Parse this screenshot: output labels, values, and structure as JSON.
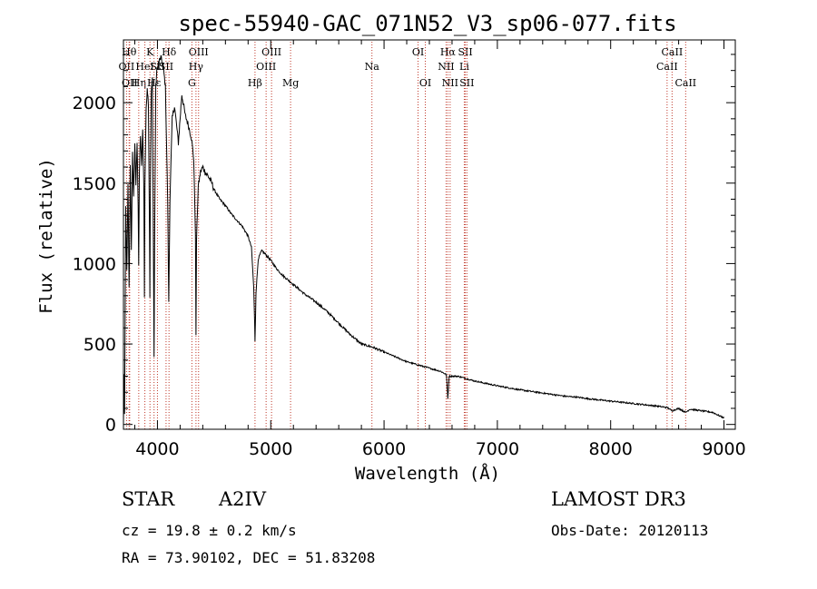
{
  "chart_data": {
    "type": "line",
    "title": "spec-55940-GAC_071N52_V3_sp06-077.fits",
    "xlabel": "Wavelength (Å)",
    "ylabel": "Flux (relative)",
    "xlim": [
      3700,
      9100
    ],
    "ylim": [
      -30,
      2390
    ],
    "x_ticks": [
      4000,
      5000,
      6000,
      7000,
      8000,
      9000
    ],
    "x_tick_labels": [
      "4000",
      "5000",
      "6000",
      "7000",
      "8000",
      "9000"
    ],
    "y_ticks": [
      0,
      500,
      1000,
      1500,
      2000
    ],
    "y_tick_labels": [
      "0",
      "500",
      "1000",
      "1500",
      "2000"
    ],
    "x_minor_step": 200,
    "y_minor_step": 100,
    "series": [
      {
        "name": "spectrum",
        "color": "#000000",
        "points": [
          [
            3700,
            5
          ],
          [
            3705,
            320
          ],
          [
            3710,
            60
          ],
          [
            3720,
            1350
          ],
          [
            3730,
            950
          ],
          [
            3740,
            1500
          ],
          [
            3750,
            850
          ],
          [
            3760,
            1600
          ],
          [
            3770,
            1100
          ],
          [
            3780,
            1700
          ],
          [
            3790,
            1400
          ],
          [
            3800,
            1750
          ],
          [
            3810,
            1500
          ],
          [
            3820,
            1750
          ],
          [
            3830,
            1350
          ],
          [
            3835,
            1000
          ],
          [
            3840,
            1550
          ],
          [
            3850,
            1800
          ],
          [
            3860,
            1600
          ],
          [
            3870,
            1850
          ],
          [
            3880,
            1450
          ],
          [
            3885,
            800
          ],
          [
            3890,
            1500
          ],
          [
            3900,
            1950
          ],
          [
            3910,
            2100
          ],
          [
            3920,
            2000
          ],
          [
            3930,
            1200
          ],
          [
            3933,
            800
          ],
          [
            3936,
            1300
          ],
          [
            3945,
            2050
          ],
          [
            3955,
            2150
          ],
          [
            3965,
            1000
          ],
          [
            3970,
            420
          ],
          [
            3975,
            1100
          ],
          [
            3985,
            2100
          ],
          [
            3995,
            2200
          ],
          [
            4010,
            2250
          ],
          [
            4030,
            2280
          ],
          [
            4050,
            2230
          ],
          [
            4070,
            2100
          ],
          [
            4090,
            1400
          ],
          [
            4100,
            750
          ],
          [
            4110,
            1400
          ],
          [
            4130,
            1900
          ],
          [
            4150,
            1980
          ],
          [
            4170,
            1850
          ],
          [
            4185,
            1750
          ],
          [
            4200,
            1900
          ],
          [
            4215,
            2050
          ],
          [
            4230,
            1990
          ],
          [
            4245,
            1920
          ],
          [
            4260,
            1890
          ],
          [
            4280,
            1840
          ],
          [
            4300,
            1780
          ],
          [
            4320,
            1650
          ],
          [
            4335,
            1200
          ],
          [
            4340,
            540
          ],
          [
            4345,
            1150
          ],
          [
            4360,
            1480
          ],
          [
            4380,
            1570
          ],
          [
            4400,
            1600
          ],
          [
            4420,
            1570
          ],
          [
            4450,
            1540
          ],
          [
            4480,
            1500
          ],
          [
            4500,
            1460
          ],
          [
            4550,
            1400
          ],
          [
            4600,
            1360
          ],
          [
            4650,
            1310
          ],
          [
            4700,
            1270
          ],
          [
            4750,
            1230
          ],
          [
            4800,
            1170
          ],
          [
            4830,
            1100
          ],
          [
            4850,
            850
          ],
          [
            4861,
            520
          ],
          [
            4870,
            820
          ],
          [
            4890,
            1030
          ],
          [
            4920,
            1080
          ],
          [
            4950,
            1060
          ],
          [
            5000,
            1020
          ],
          [
            5050,
            970
          ],
          [
            5100,
            930
          ],
          [
            5150,
            900
          ],
          [
            5200,
            870
          ],
          [
            5300,
            810
          ],
          [
            5400,
            760
          ],
          [
            5500,
            700
          ],
          [
            5600,
            630
          ],
          [
            5700,
            560
          ],
          [
            5800,
            500
          ],
          [
            5900,
            480
          ],
          [
            6000,
            450
          ],
          [
            6100,
            420
          ],
          [
            6200,
            390
          ],
          [
            6300,
            370
          ],
          [
            6400,
            350
          ],
          [
            6500,
            330
          ],
          [
            6550,
            310
          ],
          [
            6563,
            160
          ],
          [
            6575,
            300
          ],
          [
            6650,
            300
          ],
          [
            6700,
            290
          ],
          [
            6800,
            270
          ],
          [
            7000,
            240
          ],
          [
            7200,
            215
          ],
          [
            7400,
            195
          ],
          [
            7600,
            175
          ],
          [
            7700,
            170
          ],
          [
            7800,
            160
          ],
          [
            8000,
            145
          ],
          [
            8200,
            130
          ],
          [
            8400,
            115
          ],
          [
            8500,
            105
          ],
          [
            8542,
            85
          ],
          [
            8600,
            100
          ],
          [
            8662,
            75
          ],
          [
            8700,
            95
          ],
          [
            8800,
            85
          ],
          [
            8900,
            75
          ],
          [
            9000,
            40
          ]
        ]
      }
    ],
    "line_markers": [
      {
        "label": "OII",
        "wavelength": 3727,
        "row": 2
      },
      {
        "label": "Hθ",
        "wavelength": 3750,
        "row": 1
      },
      {
        "label": "OII",
        "wavelength": 3755,
        "row": 3
      },
      {
        "label": "Hη",
        "wavelength": 3835,
        "row": 3
      },
      {
        "label": "HeI",
        "wavelength": 3889,
        "row": 2
      },
      {
        "label": "K",
        "wavelength": 3934,
        "row": 1
      },
      {
        "label": "SII",
        "wavelength": 4000,
        "row": 2
      },
      {
        "label": "Hε",
        "wavelength": 3970,
        "row": 3
      },
      {
        "label": "Hδ",
        "wavelength": 4102,
        "row": 1
      },
      {
        "label": "SII",
        "wavelength": 4076,
        "row": 2
      },
      {
        "label": "OIII",
        "wavelength": 4363,
        "row": 1
      },
      {
        "label": "Hγ",
        "wavelength": 4340,
        "row": 2
      },
      {
        "label": "G",
        "wavelength": 4304,
        "row": 3
      },
      {
        "label": "Hβ",
        "wavelength": 4861,
        "row": 3
      },
      {
        "label": "OIII",
        "wavelength": 5007,
        "row": 1
      },
      {
        "label": "OIII",
        "wavelength": 4959,
        "row": 2
      },
      {
        "label": "Mg",
        "wavelength": 5175,
        "row": 3
      },
      {
        "label": "Na",
        "wavelength": 5893,
        "row": 2
      },
      {
        "label": "OI",
        "wavelength": 6300,
        "row": 1
      },
      {
        "label": "OI",
        "wavelength": 6364,
        "row": 3
      },
      {
        "label": "Hα",
        "wavelength": 6563,
        "row": 1
      },
      {
        "label": "NII",
        "wavelength": 6548,
        "row": 2
      },
      {
        "label": "NII",
        "wavelength": 6583,
        "row": 3
      },
      {
        "label": "SII",
        "wavelength": 6717,
        "row": 1
      },
      {
        "label": "Li",
        "wavelength": 6708,
        "row": 2
      },
      {
        "label": "SII",
        "wavelength": 6731,
        "row": 3
      },
      {
        "label": "CaII",
        "wavelength": 8542,
        "row": 1
      },
      {
        "label": "CaII",
        "wavelength": 8498,
        "row": 2
      },
      {
        "label": "CaII",
        "wavelength": 8662,
        "row": 3
      }
    ],
    "marker_color": "#c0392b"
  },
  "info": {
    "object_class": "STAR",
    "subclass": "A2IV",
    "survey": "LAMOST DR3",
    "cz": "cz = 19.8 ± 0.2 km/s",
    "obs_date": "Obs-Date: 20120113",
    "coords": "RA =  73.90102, DEC =  51.83208"
  }
}
